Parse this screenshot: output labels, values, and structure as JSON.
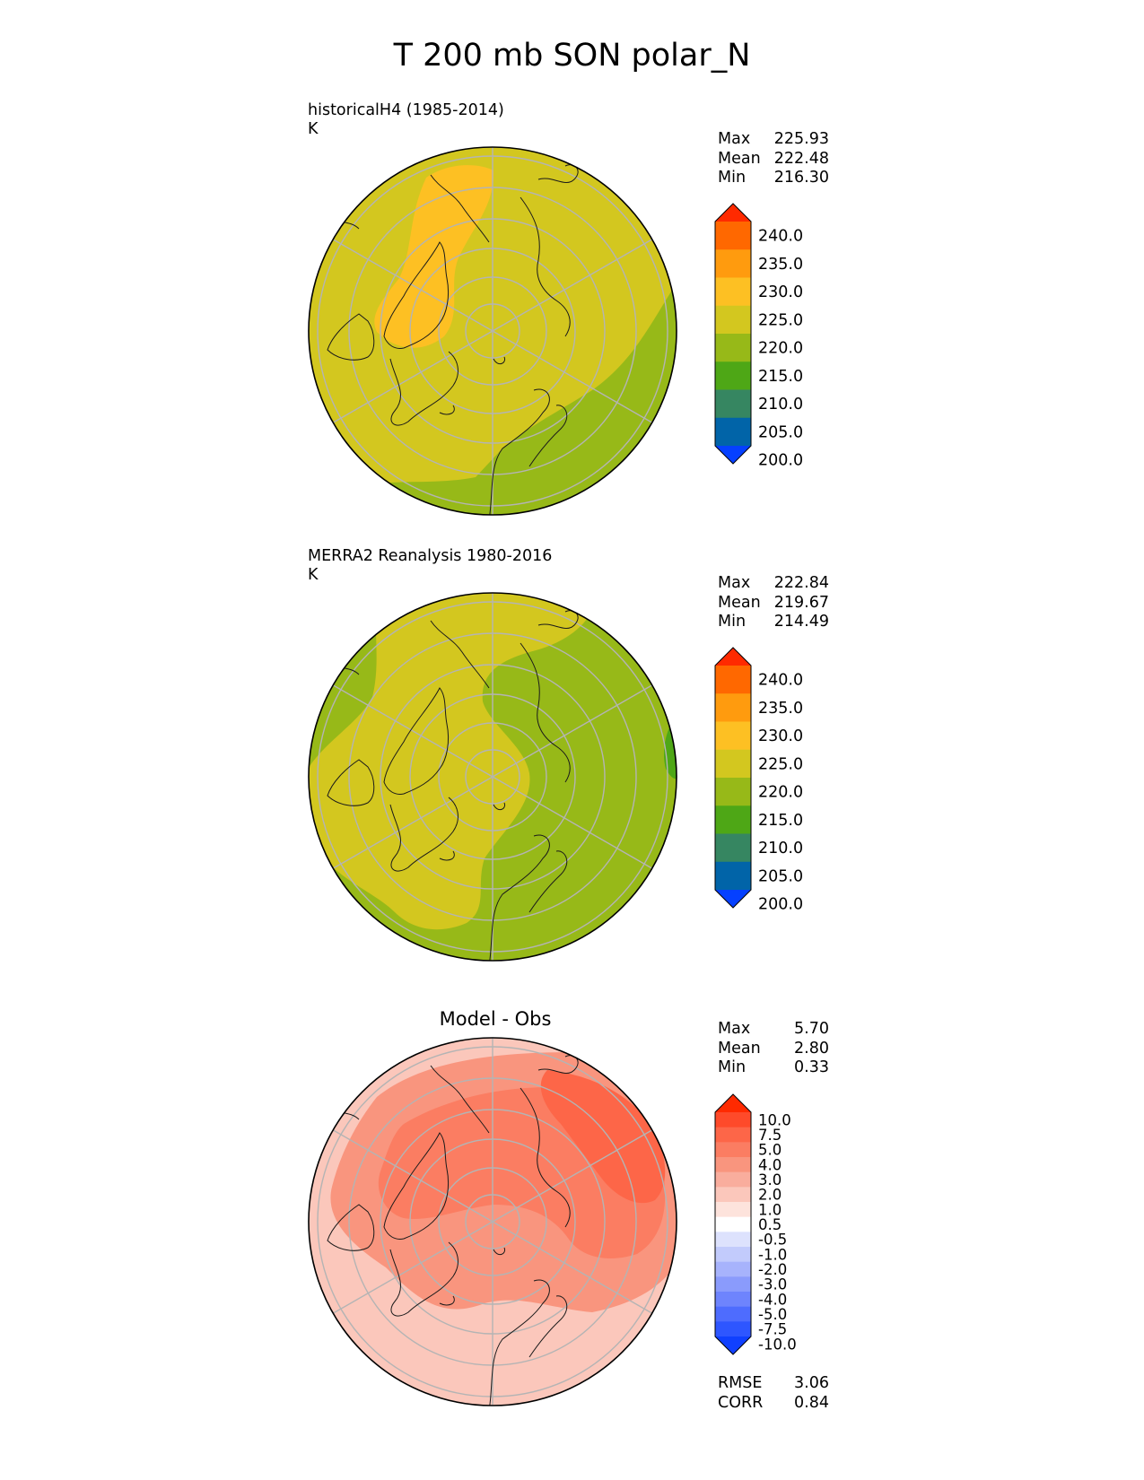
{
  "figure": {
    "title": "T 200 mb SON polar_N"
  },
  "panels": [
    {
      "title_line1": "historicalH4 (1985-2014)",
      "title_line2": "K",
      "stats": [
        {
          "label": "Max",
          "value": "225.93"
        },
        {
          "label": "Mean",
          "value": "222.48"
        },
        {
          "label": "Min",
          "value": "216.30"
        }
      ]
    },
    {
      "title_line1": "MERRA2 Reanalysis 1980-2016",
      "title_line2": "K",
      "stats": [
        {
          "label": "Max",
          "value": "222.84"
        },
        {
          "label": "Mean",
          "value": "219.67"
        },
        {
          "label": "Min",
          "value": "214.49"
        }
      ]
    },
    {
      "title": "Model - Obs",
      "stats": [
        {
          "label": "Max",
          "value": "5.70"
        },
        {
          "label": "Mean",
          "value": "2.80"
        },
        {
          "label": "Min",
          "value": "0.33"
        }
      ],
      "metrics": [
        {
          "label": "RMSE",
          "value": "3.06"
        },
        {
          "label": "CORR",
          "value": "0.84"
        }
      ]
    }
  ],
  "colorbar_abs": {
    "levels": [
      "240.0",
      "235.0",
      "230.0",
      "225.0",
      "220.0",
      "215.0",
      "210.0",
      "205.0",
      "200.0"
    ],
    "colors": [
      "#ff2a00",
      "#ff6800",
      "#ff9b0e",
      "#fdc023",
      "#d3c71f",
      "#97b918",
      "#4ea716",
      "#368661",
      "#0164a8",
      "#0540ff"
    ]
  },
  "colorbar_diff": {
    "levels": [
      "10.0",
      "7.5",
      "5.0",
      "4.0",
      "3.0",
      "2.0",
      "1.0",
      "0.5",
      "-0.5",
      "-1.0",
      "-2.0",
      "-3.0",
      "-4.0",
      "-5.0",
      "-7.5",
      "-10.0"
    ],
    "colors": [
      "#ff2a00",
      "#fe4a2a",
      "#fd6648",
      "#fb7d62",
      "#f9957e",
      "#f9ad9d",
      "#fbc7bb",
      "#fde3dc",
      "#ffffff",
      "#dde2fd",
      "#c2cbfc",
      "#a7b3fc",
      "#8a9bfc",
      "#6e84fd",
      "#4e6cfe",
      "#2e56ff",
      "#1040ff"
    ]
  },
  "map_fields": {
    "model_colors": {
      "base": "#d3c71f",
      "warm": "#fdc023",
      "cool": "#97b918"
    },
    "obs_colors": {
      "base": "#d3c71f",
      "cool": "#97b918",
      "cold": "#4ea716"
    },
    "diff_colors": {
      "base": "#fbc7bb",
      "mid": "#f9957e",
      "high": "#fb7d62",
      "top": "#fd6648",
      "light": "#fde3dc"
    }
  }
}
